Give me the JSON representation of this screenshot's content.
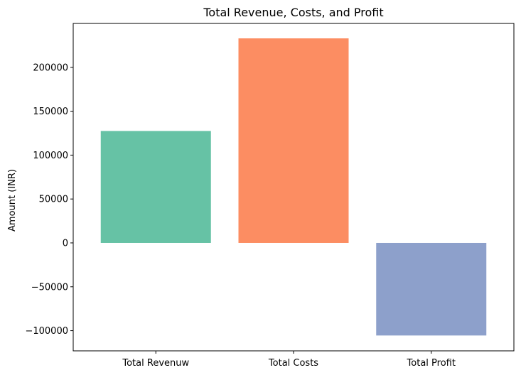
{
  "chart_data": {
    "type": "bar",
    "title": "Total Revenue, Costs, and Profit",
    "xlabel": "",
    "ylabel": "Amount (INR)",
    "categories": [
      "Total Revenuw",
      "Total Costs",
      "Total Profit"
    ],
    "values": [
      127500,
      233000,
      -105500
    ],
    "colors": [
      "#66c2a5",
      "#fc8d62",
      "#8da0cb"
    ],
    "ylim": [
      -123000,
      250000
    ],
    "yticks": [
      -100000,
      -50000,
      0,
      50000,
      100000,
      150000,
      200000
    ],
    "ytick_labels": [
      "−100000",
      "−50000",
      "0",
      "50000",
      "100000",
      "150000",
      "200000"
    ],
    "grid": false,
    "legend": "none"
  }
}
